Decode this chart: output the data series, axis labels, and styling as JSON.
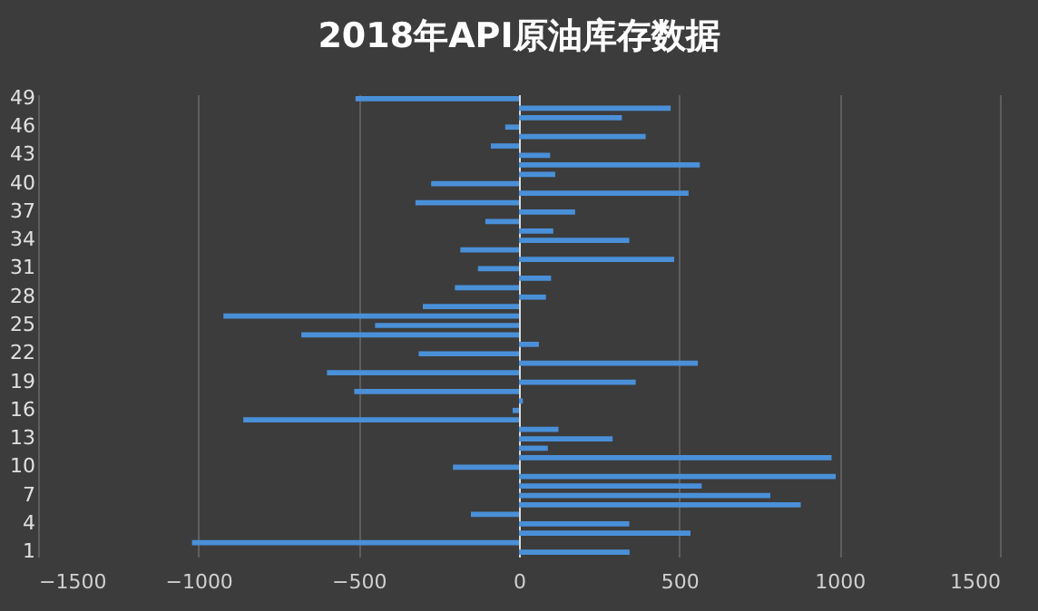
{
  "chart_data": {
    "type": "bar",
    "orientation": "horizontal",
    "title": "2018年API原油库存数据",
    "categories": [
      "49",
      null,
      null,
      "46",
      null,
      null,
      "43",
      null,
      null,
      "40",
      null,
      null,
      "37",
      null,
      null,
      "34",
      null,
      null,
      "31",
      null,
      null,
      "28",
      null,
      null,
      "25",
      null,
      null,
      "22",
      null,
      null,
      "19",
      null,
      null,
      "16",
      null,
      null,
      "13",
      null,
      null,
      "10",
      null,
      null,
      "7",
      null,
      null,
      "4",
      null,
      null,
      "1"
    ],
    "values": [
      -510,
      473,
      321,
      -43,
      395,
      -88,
      97,
      564,
      113,
      -274,
      529,
      -323,
      175,
      -105,
      107,
      344,
      -183,
      484,
      -128,
      100,
      -200,
      84,
      -300,
      -922,
      -449,
      -679,
      62,
      -313,
      558,
      -599,
      364,
      -514,
      12,
      -20,
      -860,
      123,
      292,
      90,
      975,
      -206,
      988,
      570,
      784,
      879,
      -150,
      344,
      535,
      -1020,
      345
    ],
    "color": "#4a90d9",
    "xlim": [
      -1500,
      1500
    ],
    "xticks": [
      -1500,
      -1000,
      -500,
      0,
      500,
      1000,
      1500
    ],
    "grid": "x"
  }
}
